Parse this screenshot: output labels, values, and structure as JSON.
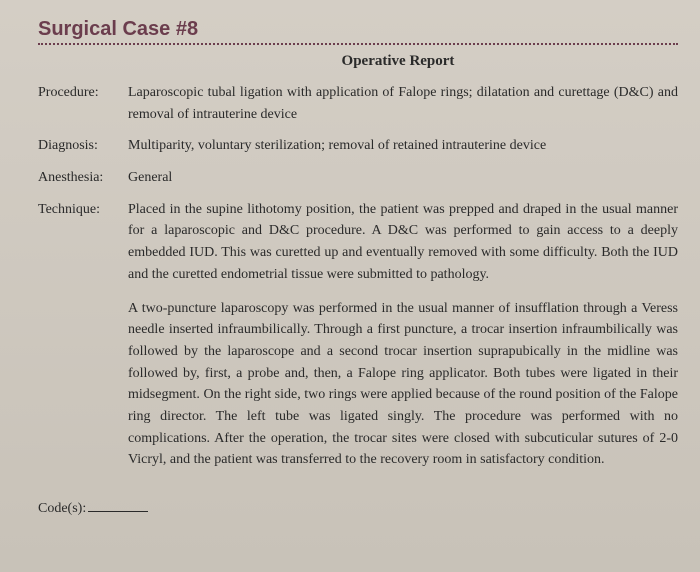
{
  "header": {
    "case_title": "Surgical Case #8",
    "report_title": "Operative Report"
  },
  "fields": {
    "procedure": {
      "label": "Procedure:",
      "value": "Laparoscopic tubal ligation with application of Falope rings; dilatation and curettage (D&C) and removal of intrauterine device"
    },
    "diagnosis": {
      "label": "Diagnosis:",
      "value": "Multiparity, voluntary sterilization; removal of retained intrauterine device"
    },
    "anesthesia": {
      "label": "Anesthesia:",
      "value": "General"
    },
    "technique": {
      "label": "Technique:",
      "para1": "Placed in the supine lithotomy position, the patient was prepped and draped in the usual manner for a laparoscopic and D&C procedure. A D&C was performed to gain access to a deeply embedded IUD. This was curetted up and eventually removed with some difficulty. Both the IUD and the curetted endometrial tissue were submitted to pathology.",
      "para2": "A two-puncture laparoscopy was performed in the usual manner of insufflation through a Veress needle inserted infraumbilically. Through a first puncture, a trocar insertion infraumbilically was followed by the laparoscope and a second trocar insertion suprapubically in the midline was followed by, first, a probe and, then, a Falope ring applicator. Both tubes were ligated in their midsegment. On the right side, two rings were applied because of the round position of the Falope ring director. The left tube was ligated singly. The procedure was performed with no complications. After the operation, the trocar sites were closed with subcuticular sutures of 2-0 Vicryl, and the patient was transferred to the recovery room in satisfactory condition."
    },
    "codes": {
      "label": "Code(s):"
    }
  },
  "colors": {
    "header_color": "#6b3d4d",
    "text_color": "#2a2a2a",
    "background_top": "#d4cec5",
    "background_bottom": "#c8c2b8"
  },
  "typography": {
    "header_fontsize": 20,
    "title_fontsize": 15,
    "body_fontsize": 14,
    "line_height": 1.55
  }
}
